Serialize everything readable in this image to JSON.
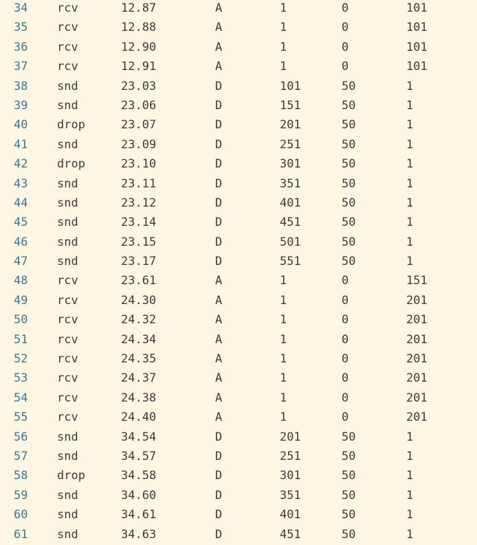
{
  "colors": {
    "background": "#fdf6e3",
    "line_number": "#3a7896",
    "text": "#3b3b3b"
  },
  "rows": [
    {
      "ln": "34",
      "ev": "rcv",
      "time": "12.87",
      "dir": "A",
      "seq": "1",
      "size": "0",
      "ack": "101"
    },
    {
      "ln": "35",
      "ev": "rcv",
      "time": "12.88",
      "dir": "A",
      "seq": "1",
      "size": "0",
      "ack": "101"
    },
    {
      "ln": "36",
      "ev": "rcv",
      "time": "12.90",
      "dir": "A",
      "seq": "1",
      "size": "0",
      "ack": "101"
    },
    {
      "ln": "37",
      "ev": "rcv",
      "time": "12.91",
      "dir": "A",
      "seq": "1",
      "size": "0",
      "ack": "101"
    },
    {
      "ln": "38",
      "ev": "snd",
      "time": "23.03",
      "dir": "D",
      "seq": "101",
      "size": "50",
      "ack": "1"
    },
    {
      "ln": "39",
      "ev": "snd",
      "time": "23.06",
      "dir": "D",
      "seq": "151",
      "size": "50",
      "ack": "1"
    },
    {
      "ln": "40",
      "ev": "drop",
      "time": "23.07",
      "dir": "D",
      "seq": "201",
      "size": "50",
      "ack": "1"
    },
    {
      "ln": "41",
      "ev": "snd",
      "time": "23.09",
      "dir": "D",
      "seq": "251",
      "size": "50",
      "ack": "1"
    },
    {
      "ln": "42",
      "ev": "drop",
      "time": "23.10",
      "dir": "D",
      "seq": "301",
      "size": "50",
      "ack": "1"
    },
    {
      "ln": "43",
      "ev": "snd",
      "time": "23.11",
      "dir": "D",
      "seq": "351",
      "size": "50",
      "ack": "1"
    },
    {
      "ln": "44",
      "ev": "snd",
      "time": "23.12",
      "dir": "D",
      "seq": "401",
      "size": "50",
      "ack": "1"
    },
    {
      "ln": "45",
      "ev": "snd",
      "time": "23.14",
      "dir": "D",
      "seq": "451",
      "size": "50",
      "ack": "1"
    },
    {
      "ln": "46",
      "ev": "snd",
      "time": "23.15",
      "dir": "D",
      "seq": "501",
      "size": "50",
      "ack": "1"
    },
    {
      "ln": "47",
      "ev": "snd",
      "time": "23.17",
      "dir": "D",
      "seq": "551",
      "size": "50",
      "ack": "1"
    },
    {
      "ln": "48",
      "ev": "rcv",
      "time": "23.61",
      "dir": "A",
      "seq": "1",
      "size": "0",
      "ack": "151"
    },
    {
      "ln": "49",
      "ev": "rcv",
      "time": "24.30",
      "dir": "A",
      "seq": "1",
      "size": "0",
      "ack": "201"
    },
    {
      "ln": "50",
      "ev": "rcv",
      "time": "24.32",
      "dir": "A",
      "seq": "1",
      "size": "0",
      "ack": "201"
    },
    {
      "ln": "51",
      "ev": "rcv",
      "time": "24.34",
      "dir": "A",
      "seq": "1",
      "size": "0",
      "ack": "201"
    },
    {
      "ln": "52",
      "ev": "rcv",
      "time": "24.35",
      "dir": "A",
      "seq": "1",
      "size": "0",
      "ack": "201"
    },
    {
      "ln": "53",
      "ev": "rcv",
      "time": "24.37",
      "dir": "A",
      "seq": "1",
      "size": "0",
      "ack": "201"
    },
    {
      "ln": "54",
      "ev": "rcv",
      "time": "24.38",
      "dir": "A",
      "seq": "1",
      "size": "0",
      "ack": "201"
    },
    {
      "ln": "55",
      "ev": "rcv",
      "time": "24.40",
      "dir": "A",
      "seq": "1",
      "size": "0",
      "ack": "201"
    },
    {
      "ln": "56",
      "ev": "snd",
      "time": "34.54",
      "dir": "D",
      "seq": "201",
      "size": "50",
      "ack": "1"
    },
    {
      "ln": "57",
      "ev": "snd",
      "time": "34.57",
      "dir": "D",
      "seq": "251",
      "size": "50",
      "ack": "1"
    },
    {
      "ln": "58",
      "ev": "drop",
      "time": "34.58",
      "dir": "D",
      "seq": "301",
      "size": "50",
      "ack": "1"
    },
    {
      "ln": "59",
      "ev": "snd",
      "time": "34.60",
      "dir": "D",
      "seq": "351",
      "size": "50",
      "ack": "1"
    },
    {
      "ln": "60",
      "ev": "snd",
      "time": "34.61",
      "dir": "D",
      "seq": "401",
      "size": "50",
      "ack": "1"
    },
    {
      "ln": "61",
      "ev": "snd",
      "time": "34.63",
      "dir": "D",
      "seq": "451",
      "size": "50",
      "ack": "1"
    }
  ]
}
